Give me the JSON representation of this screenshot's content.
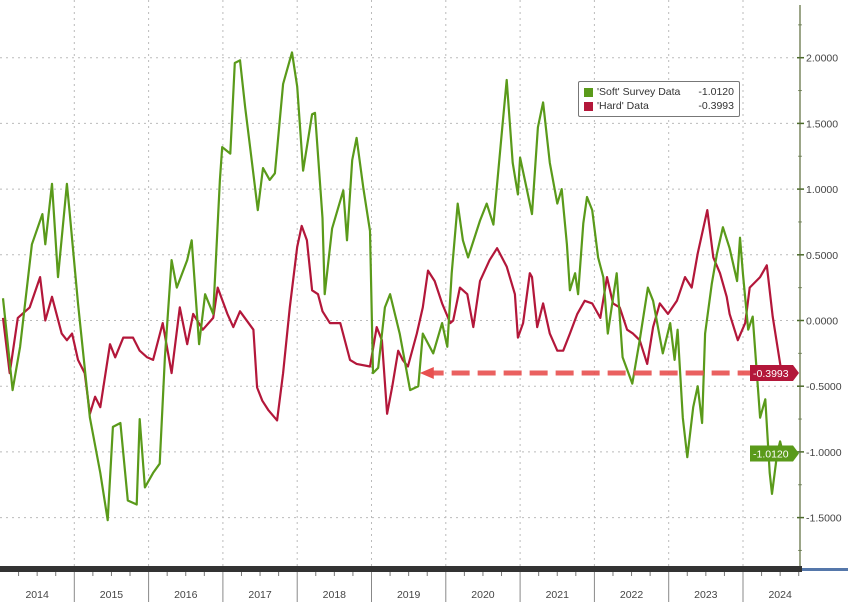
{
  "chart_data": {
    "type": "line",
    "title": "",
    "xlabel": "",
    "ylabel": "",
    "x_ticks": [
      "2014",
      "2015",
      "2016",
      "2017",
      "2018",
      "2019",
      "2020",
      "2021",
      "2022",
      "2023",
      "2024"
    ],
    "y_ticks": [
      "2.0000",
      "1.5000",
      "1.0000",
      "0.5000",
      "0.0000",
      "-0.5000",
      "-1.0000",
      "-1.5000"
    ],
    "xlim": [
      2014.0,
      2024.77
    ],
    "ylim": [
      -1.85,
      2.4
    ],
    "y_axis_side": "right",
    "grid": true,
    "legend_placement": "top-right",
    "series": [
      {
        "name": "'Soft' Survey Data",
        "last_value": "-1.0120",
        "color": "#5a9a1a",
        "points": [
          [
            2014.04,
            0.17
          ],
          [
            2014.17,
            -0.53
          ],
          [
            2014.27,
            -0.2
          ],
          [
            2014.43,
            0.58
          ],
          [
            2014.57,
            0.81
          ],
          [
            2014.61,
            0.58
          ],
          [
            2014.7,
            1.04
          ],
          [
            2014.78,
            0.33
          ],
          [
            2014.9,
            1.04
          ],
          [
            2014.94,
            0.81
          ],
          [
            2015.05,
            0.13
          ],
          [
            2015.21,
            -0.74
          ],
          [
            2015.35,
            -1.16
          ],
          [
            2015.45,
            -1.52
          ],
          [
            2015.52,
            -0.81
          ],
          [
            2015.62,
            -0.78
          ],
          [
            2015.72,
            -1.37
          ],
          [
            2015.84,
            -1.4
          ],
          [
            2015.88,
            -0.75
          ],
          [
            2015.95,
            -1.27
          ],
          [
            2016.06,
            -1.16
          ],
          [
            2016.15,
            -1.09
          ],
          [
            2016.22,
            -0.28
          ],
          [
            2016.31,
            0.46
          ],
          [
            2016.38,
            0.25
          ],
          [
            2016.52,
            0.46
          ],
          [
            2016.58,
            0.61
          ],
          [
            2016.68,
            -0.18
          ],
          [
            2016.76,
            0.2
          ],
          [
            2016.87,
            0.05
          ],
          [
            2016.96,
            1.07
          ],
          [
            2016.99,
            1.32
          ],
          [
            2017.1,
            1.27
          ],
          [
            2017.16,
            1.96
          ],
          [
            2017.23,
            1.98
          ],
          [
            2017.3,
            1.62
          ],
          [
            2017.36,
            1.35
          ],
          [
            2017.47,
            0.84
          ],
          [
            2017.54,
            1.16
          ],
          [
            2017.63,
            1.07
          ],
          [
            2017.7,
            1.12
          ],
          [
            2017.81,
            1.8
          ],
          [
            2017.86,
            1.9
          ],
          [
            2017.93,
            2.04
          ],
          [
            2018.0,
            1.78
          ],
          [
            2018.08,
            1.14
          ],
          [
            2018.2,
            1.57
          ],
          [
            2018.24,
            1.58
          ],
          [
            2018.34,
            0.78
          ],
          [
            2018.37,
            0.2
          ],
          [
            2018.47,
            0.7
          ],
          [
            2018.62,
            0.99
          ],
          [
            2018.67,
            0.61
          ],
          [
            2018.74,
            1.22
          ],
          [
            2018.8,
            1.39
          ],
          [
            2018.89,
            1.01
          ],
          [
            2018.98,
            0.68
          ],
          [
            2019.02,
            -0.4
          ],
          [
            2019.09,
            -0.36
          ],
          [
            2019.18,
            0.1
          ],
          [
            2019.25,
            0.2
          ],
          [
            2019.38,
            -0.1
          ],
          [
            2019.52,
            -0.53
          ],
          [
            2019.63,
            -0.5
          ],
          [
            2019.69,
            -0.1
          ],
          [
            2019.83,
            -0.25
          ],
          [
            2019.95,
            -0.02
          ],
          [
            2020.02,
            -0.2
          ],
          [
            2020.08,
            0.36
          ],
          [
            2020.16,
            0.89
          ],
          [
            2020.23,
            0.61
          ],
          [
            2020.3,
            0.48
          ],
          [
            2020.46,
            0.76
          ],
          [
            2020.55,
            0.89
          ],
          [
            2020.64,
            0.73
          ],
          [
            2020.76,
            1.47
          ],
          [
            2020.82,
            1.83
          ],
          [
            2020.9,
            1.2
          ],
          [
            2020.97,
            0.96
          ],
          [
            2021.0,
            1.24
          ],
          [
            2021.09,
            1.0
          ],
          [
            2021.16,
            0.81
          ],
          [
            2021.24,
            1.47
          ],
          [
            2021.31,
            1.66
          ],
          [
            2021.4,
            1.2
          ],
          [
            2021.5,
            0.89
          ],
          [
            2021.56,
            1.0
          ],
          [
            2021.63,
            0.58
          ],
          [
            2021.67,
            0.23
          ],
          [
            2021.74,
            0.36
          ],
          [
            2021.78,
            0.2
          ],
          [
            2021.85,
            0.74
          ],
          [
            2021.9,
            0.94
          ],
          [
            2021.97,
            0.84
          ],
          [
            2022.05,
            0.48
          ],
          [
            2022.12,
            0.33
          ],
          [
            2022.18,
            -0.1
          ],
          [
            2022.3,
            0.36
          ],
          [
            2022.38,
            -0.28
          ],
          [
            2022.51,
            -0.48
          ],
          [
            2022.61,
            -0.15
          ],
          [
            2022.72,
            0.25
          ],
          [
            2022.79,
            0.15
          ],
          [
            2022.92,
            -0.25
          ],
          [
            2023.02,
            -0.02
          ],
          [
            2023.08,
            -0.3
          ],
          [
            2023.12,
            -0.07
          ],
          [
            2023.19,
            -0.74
          ],
          [
            2023.25,
            -1.04
          ],
          [
            2023.33,
            -0.66
          ],
          [
            2023.39,
            -0.5
          ],
          [
            2023.45,
            -0.78
          ],
          [
            2023.49,
            -0.1
          ],
          [
            2023.58,
            0.28
          ],
          [
            2023.65,
            0.51
          ],
          [
            2023.73,
            0.71
          ],
          [
            2023.82,
            0.55
          ],
          [
            2023.92,
            0.3
          ],
          [
            2023.96,
            0.63
          ],
          [
            2024.0,
            0.35
          ],
          [
            2024.07,
            -0.07
          ],
          [
            2024.13,
            0.03
          ],
          [
            2024.23,
            -0.74
          ],
          [
            2024.3,
            -0.6
          ],
          [
            2024.36,
            -1.16
          ],
          [
            2024.39,
            -1.32
          ],
          [
            2024.46,
            -1.01
          ],
          [
            2024.5,
            -0.92
          ],
          [
            2024.54,
            -1.012
          ]
        ]
      },
      {
        "name": "'Hard' Data",
        "last_value": "-0.3993",
        "color": "#b3173a",
        "points": [
          [
            2014.04,
            0.02
          ],
          [
            2014.13,
            -0.4
          ],
          [
            2014.24,
            0.02
          ],
          [
            2014.4,
            0.1
          ],
          [
            2014.54,
            0.33
          ],
          [
            2014.61,
            0.0
          ],
          [
            2014.7,
            0.18
          ],
          [
            2014.83,
            -0.1
          ],
          [
            2014.9,
            -0.15
          ],
          [
            2014.97,
            -0.1
          ],
          [
            2015.05,
            -0.3
          ],
          [
            2015.14,
            -0.4
          ],
          [
            2015.21,
            -0.71
          ],
          [
            2015.28,
            -0.58
          ],
          [
            2015.35,
            -0.66
          ],
          [
            2015.48,
            -0.18
          ],
          [
            2015.55,
            -0.28
          ],
          [
            2015.66,
            -0.13
          ],
          [
            2015.79,
            -0.13
          ],
          [
            2015.88,
            -0.23
          ],
          [
            2015.98,
            -0.28
          ],
          [
            2016.06,
            -0.3
          ],
          [
            2016.19,
            -0.02
          ],
          [
            2016.31,
            -0.4
          ],
          [
            2016.42,
            0.1
          ],
          [
            2016.52,
            -0.18
          ],
          [
            2016.6,
            0.05
          ],
          [
            2016.73,
            -0.07
          ],
          [
            2016.87,
            0.02
          ],
          [
            2016.93,
            0.25
          ],
          [
            2017.06,
            0.05
          ],
          [
            2017.14,
            -0.05
          ],
          [
            2017.23,
            0.07
          ],
          [
            2017.41,
            -0.07
          ],
          [
            2017.46,
            -0.51
          ],
          [
            2017.53,
            -0.61
          ],
          [
            2017.61,
            -0.68
          ],
          [
            2017.73,
            -0.76
          ],
          [
            2017.81,
            -0.4
          ],
          [
            2017.9,
            0.1
          ],
          [
            2018.0,
            0.56
          ],
          [
            2018.06,
            0.72
          ],
          [
            2018.13,
            0.61
          ],
          [
            2018.2,
            0.23
          ],
          [
            2018.28,
            0.2
          ],
          [
            2018.34,
            0.07
          ],
          [
            2018.44,
            -0.02
          ],
          [
            2018.58,
            -0.02
          ],
          [
            2018.71,
            -0.3
          ],
          [
            2018.8,
            -0.33
          ],
          [
            2018.98,
            -0.35
          ],
          [
            2019.07,
            -0.05
          ],
          [
            2019.14,
            -0.15
          ],
          [
            2019.21,
            -0.71
          ],
          [
            2019.28,
            -0.5
          ],
          [
            2019.36,
            -0.23
          ],
          [
            2019.42,
            -0.3
          ],
          [
            2019.49,
            -0.35
          ],
          [
            2019.61,
            -0.1
          ],
          [
            2019.69,
            0.1
          ],
          [
            2019.76,
            0.38
          ],
          [
            2019.85,
            0.3
          ],
          [
            2019.95,
            0.13
          ],
          [
            2020.06,
            -0.02
          ],
          [
            2020.1,
            0.0
          ],
          [
            2020.19,
            0.25
          ],
          [
            2020.29,
            0.2
          ],
          [
            2020.37,
            -0.05
          ],
          [
            2020.46,
            0.3
          ],
          [
            2020.59,
            0.46
          ],
          [
            2020.69,
            0.55
          ],
          [
            2020.82,
            0.41
          ],
          [
            2020.93,
            0.2
          ],
          [
            2020.97,
            -0.13
          ],
          [
            2021.04,
            -0.02
          ],
          [
            2021.13,
            0.36
          ],
          [
            2021.16,
            0.33
          ],
          [
            2021.23,
            -0.05
          ],
          [
            2021.31,
            0.13
          ],
          [
            2021.4,
            -0.1
          ],
          [
            2021.5,
            -0.23
          ],
          [
            2021.58,
            -0.23
          ],
          [
            2021.67,
            -0.1
          ],
          [
            2021.77,
            0.05
          ],
          [
            2021.87,
            0.15
          ],
          [
            2021.97,
            0.13
          ],
          [
            2022.08,
            0.02
          ],
          [
            2022.17,
            0.33
          ],
          [
            2022.25,
            0.13
          ],
          [
            2022.34,
            0.1
          ],
          [
            2022.44,
            -0.07
          ],
          [
            2022.52,
            -0.1
          ],
          [
            2022.61,
            -0.15
          ],
          [
            2022.71,
            -0.33
          ],
          [
            2022.79,
            -0.05
          ],
          [
            2022.88,
            0.13
          ],
          [
            2022.99,
            0.05
          ],
          [
            2023.11,
            0.15
          ],
          [
            2023.22,
            0.33
          ],
          [
            2023.31,
            0.25
          ],
          [
            2023.39,
            0.51
          ],
          [
            2023.52,
            0.84
          ],
          [
            2023.6,
            0.48
          ],
          [
            2023.69,
            0.36
          ],
          [
            2023.78,
            0.18
          ],
          [
            2023.82,
            0.05
          ],
          [
            2023.93,
            -0.15
          ],
          [
            2024.03,
            -0.02
          ],
          [
            2024.09,
            0.25
          ],
          [
            2024.23,
            0.33
          ],
          [
            2024.32,
            0.42
          ],
          [
            2024.4,
            0.03
          ],
          [
            2024.52,
            -0.3993
          ]
        ]
      }
    ],
    "annotations": [
      {
        "type": "dashed-arrow",
        "value": -0.3993,
        "from_x": 2024.52,
        "to_x": 2019.65,
        "color": "#e8504f"
      }
    ]
  }
}
